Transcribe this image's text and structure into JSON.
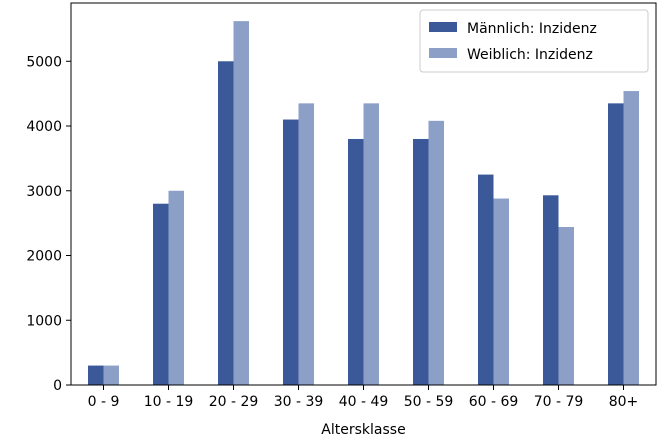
{
  "chart_data": {
    "type": "bar",
    "categories": [
      "0 - 9",
      "10 - 19",
      "20 - 29",
      "30 - 39",
      "40 - 49",
      "50 - 59",
      "60 - 69",
      "70 - 79",
      "80+"
    ],
    "series": [
      {
        "name": "Männlich: Inzidenz",
        "color": "#3b5998",
        "values": [
          300,
          2800,
          5000,
          4100,
          3800,
          3800,
          3250,
          2930,
          4350
        ]
      },
      {
        "name": "Weiblich: Inzidenz",
        "color": "#8c9fc7",
        "values": [
          300,
          3000,
          5620,
          4350,
          4350,
          4080,
          2880,
          2440,
          4540
        ]
      }
    ],
    "title": "",
    "xlabel": "Altersklasse",
    "ylabel": "",
    "ylim": [
      0,
      5900
    ],
    "yticks": [
      0,
      1000,
      2000,
      3000,
      4000,
      5000
    ],
    "legend_position": "top-right",
    "grid": false
  }
}
